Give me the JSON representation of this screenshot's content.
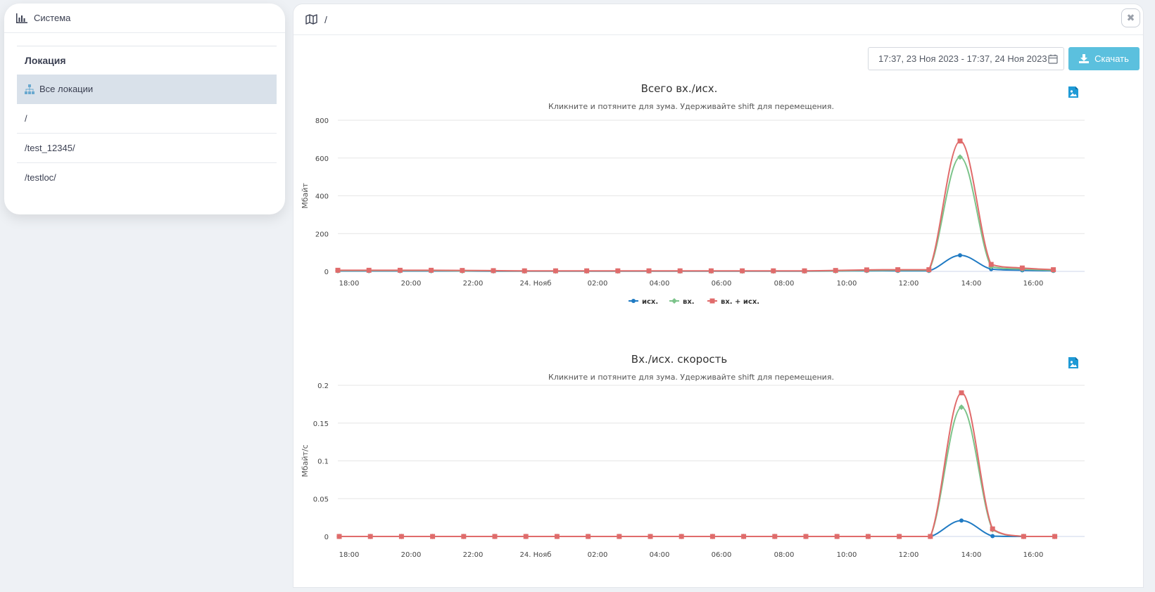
{
  "sidebar": {
    "header": "Система",
    "location_title": "Локация",
    "items": [
      {
        "label": "Все локации",
        "active": true
      },
      {
        "label": "/"
      },
      {
        "label": "/test_12345/"
      },
      {
        "label": "/testloc/"
      }
    ]
  },
  "main": {
    "path": "/",
    "date_range": "17:37, 23 Ноя 2023 - 17:37, 24 Ноя 2023",
    "download_label": "Скачать",
    "close_glyph": "✖"
  },
  "colors": {
    "out": "#1f7ac3",
    "in": "#7cc38a",
    "sum": "#e06b6b",
    "accent": "#5bc0de"
  },
  "chart_data": [
    {
      "type": "line",
      "title": "Всего вх./исх.",
      "subtitle": "Кликните и потяните для зума. Удерживайте shift для перемещения.",
      "ylabel": "Мбайт",
      "ylim": [
        0,
        800
      ],
      "yticks": [
        "800",
        "600",
        "400",
        "200",
        "0"
      ],
      "xticks": [
        "18:00",
        "20:00",
        "22:00",
        "24. Нояб",
        "02:00",
        "04:00",
        "06:00",
        "08:00",
        "10:00",
        "12:00",
        "14:00",
        "16:00"
      ],
      "legend": [
        "исх.",
        "вх.",
        "вх. + исх."
      ],
      "x": [
        "17:37",
        "18:37",
        "19:37",
        "20:37",
        "21:37",
        "22:37",
        "23:37",
        "00:37",
        "01:37",
        "02:37",
        "03:37",
        "04:37",
        "05:37",
        "06:37",
        "07:37",
        "08:37",
        "09:37",
        "10:37",
        "11:37",
        "12:37",
        "13:37",
        "14:37",
        "15:37",
        "16:37"
      ],
      "series": [
        {
          "name": "исх.",
          "values": [
            2,
            2,
            2,
            2,
            2,
            1,
            1,
            1,
            1,
            1,
            1,
            1,
            1,
            1,
            1,
            1,
            2,
            3,
            3,
            3,
            85,
            12,
            6,
            3
          ]
        },
        {
          "name": "вх.",
          "values": [
            4,
            4,
            4,
            4,
            3,
            3,
            2,
            2,
            2,
            2,
            2,
            2,
            2,
            2,
            2,
            2,
            3,
            5,
            6,
            6,
            605,
            25,
            12,
            6
          ]
        },
        {
          "name": "вх. + исх.",
          "values": [
            6,
            6,
            6,
            6,
            5,
            4,
            3,
            3,
            3,
            3,
            3,
            3,
            3,
            3,
            3,
            3,
            5,
            8,
            9,
            9,
            690,
            37,
            18,
            9
          ]
        }
      ]
    },
    {
      "type": "line",
      "title": "Вх./исх. скорость",
      "subtitle": "Кликните и потяните для зума. Удерживайте shift для перемещения.",
      "ylabel": "Мбайт/с",
      "ylim": [
        0,
        0.2
      ],
      "yticks": [
        "0.2",
        "0.15",
        "0.1",
        "0.05",
        "0"
      ],
      "xticks": [
        "18:00",
        "20:00",
        "22:00",
        "24. Нояб",
        "02:00",
        "04:00",
        "06:00",
        "08:00",
        "10:00",
        "12:00",
        "14:00",
        "16:00"
      ],
      "x": [
        "17:37",
        "18:37",
        "19:37",
        "20:37",
        "21:37",
        "22:37",
        "23:37",
        "00:37",
        "01:37",
        "02:37",
        "03:37",
        "04:37",
        "05:37",
        "06:37",
        "07:37",
        "08:37",
        "09:37",
        "10:37",
        "11:37",
        "12:37",
        "13:37",
        "14:37",
        "15:37",
        "16:37"
      ],
      "series": [
        {
          "name": "исх.",
          "values": [
            0,
            0,
            0,
            0,
            0,
            0,
            0,
            0,
            0,
            0,
            0,
            0,
            0,
            0,
            0,
            0,
            0,
            0,
            0,
            0,
            0.021,
            0.0005,
            0,
            0
          ]
        },
        {
          "name": "вх.",
          "values": [
            0,
            0,
            0,
            0,
            0,
            0,
            0,
            0,
            0,
            0,
            0,
            0,
            0,
            0,
            0,
            0,
            0,
            0,
            0,
            0,
            0.171,
            0.009,
            0,
            0
          ]
        },
        {
          "name": "вх. + исх.",
          "values": [
            0,
            0,
            0,
            0,
            0,
            0,
            0,
            0,
            0,
            0,
            0,
            0,
            0,
            0,
            0,
            0,
            0,
            0,
            0,
            0,
            0.19,
            0.01,
            0,
            0
          ]
        }
      ]
    }
  ]
}
